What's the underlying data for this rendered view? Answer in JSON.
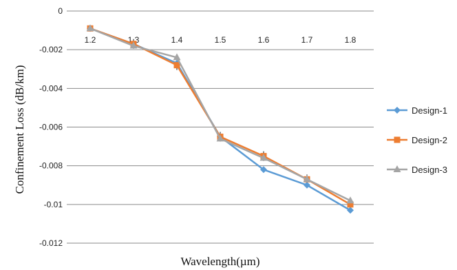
{
  "chart_data": {
    "type": "line",
    "xlabel": "Wavelength(µm)",
    "ylabel": "Confinement Loss (dB/km)",
    "x": [
      1.2,
      1.3,
      1.4,
      1.5,
      1.6,
      1.7,
      1.8
    ],
    "x_tick_labels": [
      "1.2",
      "1.3",
      "1.4",
      "1.5",
      "1.6",
      "1.7",
      "1.8"
    ],
    "y_ticks": [
      0,
      -0.002,
      -0.004,
      -0.006,
      -0.008,
      -0.01,
      -0.012
    ],
    "y_tick_labels": [
      "0",
      "-0.002",
      "-0.004",
      "-0.006",
      "-0.008",
      "-0.01",
      "-0.012"
    ],
    "ylim": [
      -0.012,
      0
    ],
    "grid": true,
    "legend_position": "right",
    "series": [
      {
        "name": "Design-1",
        "color": "#5B9BD5",
        "marker": "diamond",
        "values": [
          -0.0009,
          -0.0017,
          -0.0027,
          -0.0065,
          -0.0082,
          -0.009,
          -0.0103
        ]
      },
      {
        "name": "Design-2",
        "color": "#ED7D31",
        "marker": "square",
        "values": [
          -0.0009,
          -0.0017,
          -0.0028,
          -0.0065,
          -0.0075,
          -0.0087,
          -0.01
        ]
      },
      {
        "name": "Design-3",
        "color": "#A5A5A5",
        "marker": "triangle",
        "values": [
          -0.0009,
          -0.0018,
          -0.0024,
          -0.0066,
          -0.0076,
          -0.0087,
          -0.0098
        ]
      }
    ]
  }
}
